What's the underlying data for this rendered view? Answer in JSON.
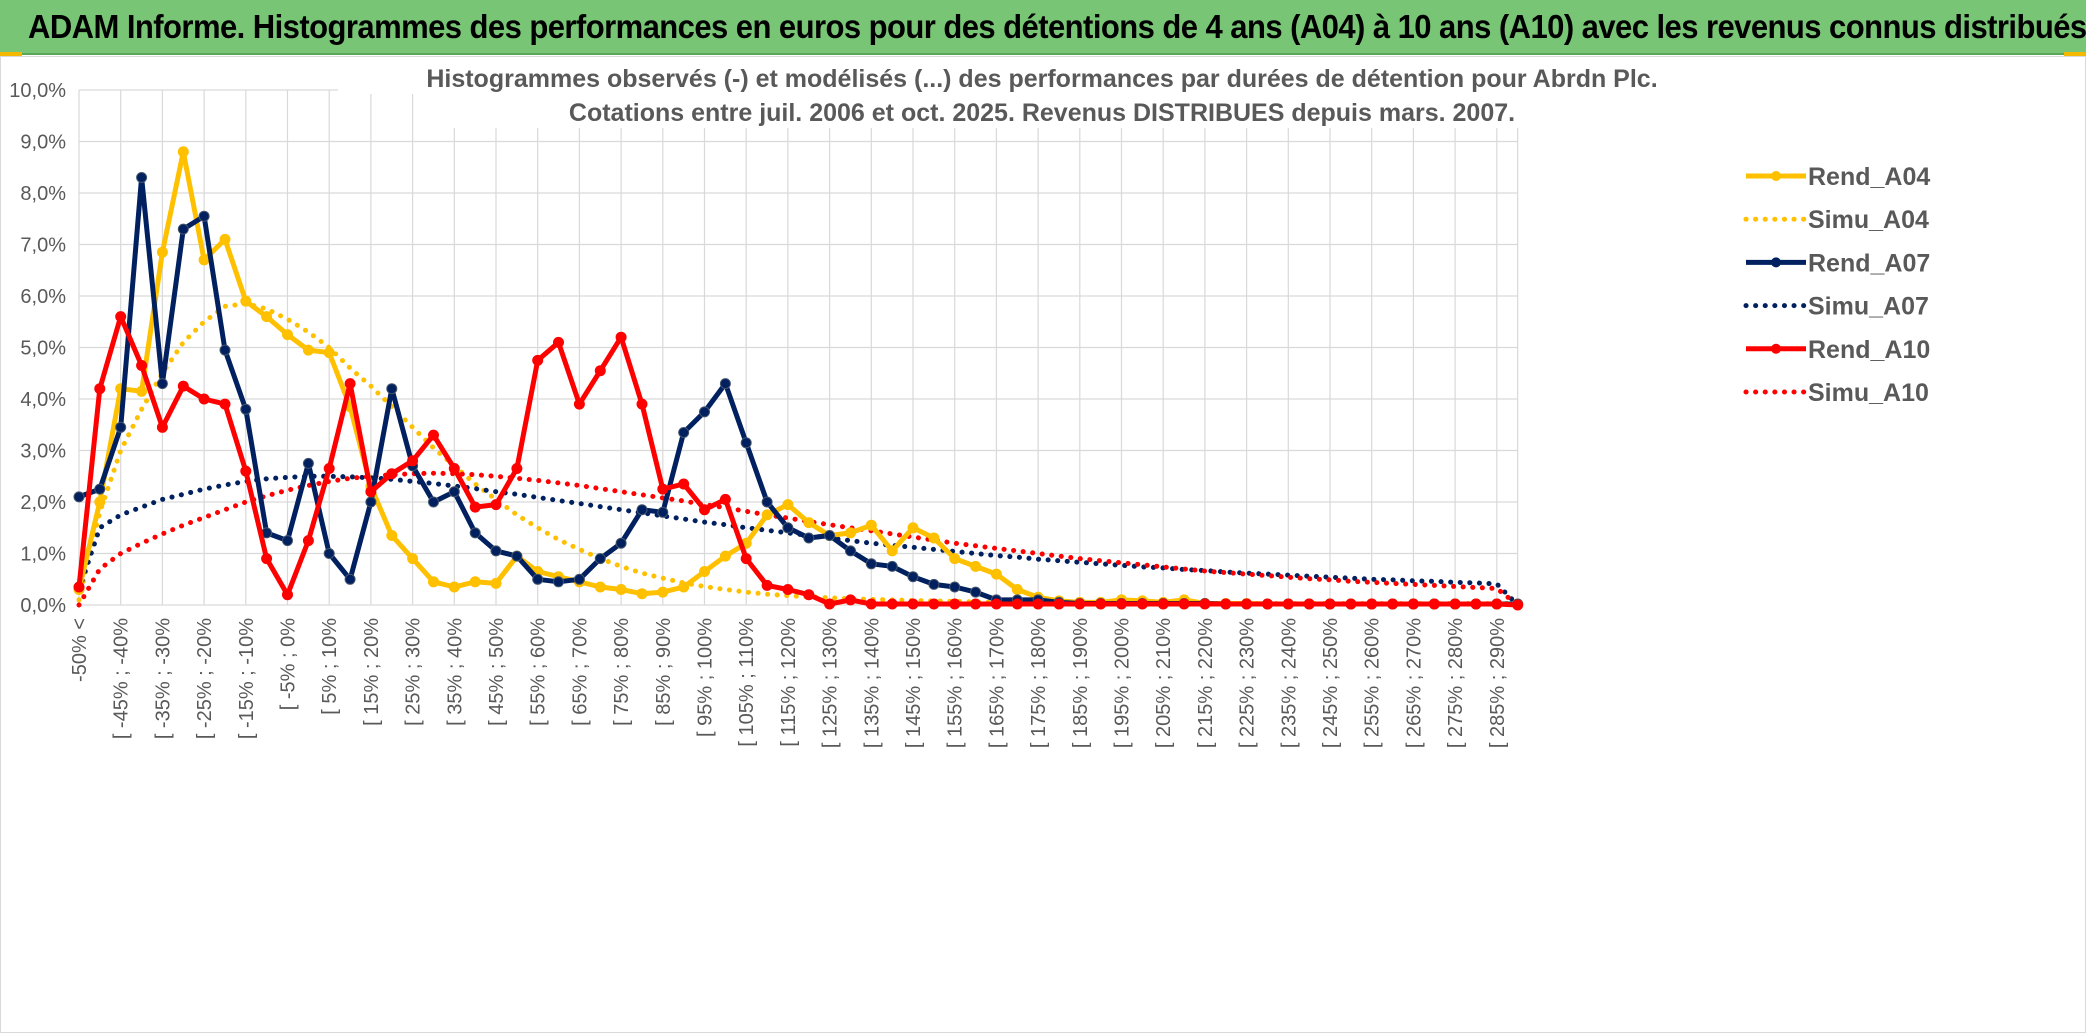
{
  "banner": {
    "title": "ADAM Informe. Histogrammes des performances en euros pour des détentions de 4 ans (A04) à 10 ans (A10) avec les revenus connus distribués"
  },
  "colors": {
    "A04": "#ffc000",
    "A07": "#002060",
    "A10": "#ff0000",
    "grid": "#d9d9d9",
    "banner": "#77c575"
  },
  "chart_data": {
    "type": "line",
    "title_line1": "Histogrammes observés (-) et modélisés (...) des performances par durées de détention pour Abrdn Plc.",
    "title_line2": "Cotations entre juil. 2006 et oct. 2025. Revenus DISTRIBUES depuis mars. 2007.",
    "ylim": [
      0,
      10
    ],
    "y_ticks": [
      "0,0%",
      "1,0%",
      "2,0%",
      "3,0%",
      "4,0%",
      "5,0%",
      "6,0%",
      "7,0%",
      "8,0%",
      "9,0%",
      "10,0%"
    ],
    "x_tick_labels": [
      "-50% <",
      "[ -45% ; -40%",
      "[ -35% ; -30%",
      "[ -25% ; -20%",
      "[ -15% ; -10%",
      "[ -5% ; 0%",
      "[ 5% ; 10%",
      "[ 15% ; 20%",
      "[ 25% ; 30%",
      "[ 35% ; 40%",
      "[ 45% ; 50%",
      "[ 55% ; 60%",
      "[ 65% ; 70%",
      "[ 75% ; 80%",
      "[ 85% ; 90%",
      "[ 95% ; 100%",
      "[ 105% ; 110%",
      "[ 115% ; 120%",
      "[ 125% ; 130%",
      "[ 135% ; 140%",
      "[ 145% ; 150%",
      "[ 155% ; 160%",
      "[ 165% ; 170%",
      "[ 175% ; 180%",
      "[ 185% ; 190%",
      "[ 195% ; 200%",
      "[ 205% ; 210%",
      "[ 215% ; 220%",
      "[ 225% ; 230%",
      "[ 235% ; 240%",
      "[ 245% ; 250%",
      "[ 255% ; 260%",
      "[ 265% ; 270%",
      "[ 275% ; 280%",
      "[ 285% ; 290%"
    ],
    "category_count": 70,
    "series": [
      {
        "name": "Rend_A04",
        "style": "solid",
        "color": "#ffc000",
        "values": [
          0.3,
          2.0,
          4.2,
          4.15,
          6.85,
          8.8,
          6.7,
          7.1,
          5.9,
          5.6,
          5.25,
          4.95,
          4.9,
          3.85,
          2.3,
          1.35,
          0.9,
          0.45,
          0.35,
          0.45,
          0.42,
          0.95,
          0.65,
          0.55,
          0.45,
          0.35,
          0.3,
          0.22,
          0.25,
          0.35,
          0.65,
          0.95,
          1.2,
          1.75,
          1.95,
          1.6,
          1.35,
          1.4,
          1.55,
          1.05,
          1.5,
          1.3,
          0.9,
          0.75,
          0.6,
          0.3,
          0.15,
          0.08,
          0.05,
          0.05,
          0.1,
          0.08,
          0.05,
          0.1,
          0.03,
          0.03,
          0.03,
          0.02,
          0.02,
          0.02,
          0.02,
          0.02,
          0.02,
          0.02,
          0.02,
          0.02,
          0.02,
          0.02,
          0.02,
          0.02
        ]
      },
      {
        "name": "Simu_A04",
        "style": "dotted",
        "color": "#ffc000",
        "values": [
          0.1,
          1.8,
          3.0,
          3.8,
          4.5,
          5.1,
          5.5,
          5.8,
          5.85,
          5.75,
          5.55,
          5.3,
          5.0,
          4.6,
          4.25,
          3.85,
          3.45,
          3.05,
          2.7,
          2.35,
          2.05,
          1.75,
          1.5,
          1.27,
          1.08,
          0.9,
          0.75,
          0.62,
          0.52,
          0.43,
          0.36,
          0.3,
          0.25,
          0.21,
          0.18,
          0.16,
          0.14,
          0.12,
          0.11,
          0.1,
          0.09,
          0.08,
          0.07,
          0.06,
          0.05,
          0.05,
          0.04,
          0.04,
          0.03,
          0.03,
          0.03,
          0.03,
          0.03,
          0.03,
          0.03,
          0.03,
          0.03,
          0.03,
          0.03,
          0.03,
          0.03,
          0.03,
          0.03,
          0.03,
          0.03,
          0.03,
          0.03,
          0.03,
          0.03,
          0.03
        ]
      },
      {
        "name": "Rend_A07",
        "style": "solid",
        "color": "#002060",
        "values": [
          2.1,
          2.25,
          3.45,
          8.3,
          4.3,
          7.3,
          7.55,
          4.95,
          3.8,
          1.4,
          1.25,
          2.75,
          1.0,
          0.5,
          2.0,
          4.2,
          2.7,
          2.0,
          2.2,
          1.4,
          1.05,
          0.95,
          0.5,
          0.45,
          0.5,
          0.9,
          1.2,
          1.85,
          1.8,
          3.35,
          3.75,
          4.3,
          3.15,
          2.0,
          1.5,
          1.3,
          1.35,
          1.05,
          0.8,
          0.75,
          0.55,
          0.4,
          0.35,
          0.25,
          0.1,
          0.1,
          0.1,
          0.05,
          0.03,
          0.03,
          0.03,
          0.03,
          0.03,
          0.03,
          0.03,
          0.02,
          0.02,
          0.02,
          0.02,
          0.02,
          0.02,
          0.02,
          0.02,
          0.02,
          0.02,
          0.02,
          0.02,
          0.02,
          0.02,
          0.02
        ]
      },
      {
        "name": "Simu_A07",
        "style": "dotted",
        "color": "#002060",
        "values": [
          0.3,
          1.5,
          1.75,
          1.9,
          2.05,
          2.15,
          2.25,
          2.33,
          2.4,
          2.45,
          2.48,
          2.5,
          2.5,
          2.49,
          2.47,
          2.44,
          2.4,
          2.36,
          2.31,
          2.26,
          2.2,
          2.15,
          2.09,
          2.03,
          1.97,
          1.91,
          1.85,
          1.79,
          1.73,
          1.67,
          1.61,
          1.56,
          1.5,
          1.45,
          1.4,
          1.35,
          1.3,
          1.25,
          1.2,
          1.16,
          1.12,
          1.08,
          1.04,
          1.0,
          0.96,
          0.93,
          0.89,
          0.86,
          0.83,
          0.8,
          0.77,
          0.74,
          0.72,
          0.69,
          0.67,
          0.64,
          0.62,
          0.6,
          0.58,
          0.56,
          0.54,
          0.52,
          0.5,
          0.49,
          0.47,
          0.46,
          0.44,
          0.43,
          0.41,
          0.0
        ]
      },
      {
        "name": "Rend_A10",
        "style": "solid",
        "color": "#ff0000",
        "values": [
          0.35,
          4.2,
          5.6,
          4.65,
          3.45,
          4.25,
          4.0,
          3.9,
          2.6,
          0.9,
          0.2,
          1.25,
          2.65,
          4.3,
          2.2,
          2.55,
          2.8,
          3.3,
          2.65,
          1.9,
          1.95,
          2.65,
          4.75,
          5.1,
          3.9,
          4.55,
          5.2,
          3.9,
          2.25,
          2.35,
          1.85,
          2.05,
          0.9,
          0.38,
          0.3,
          0.2,
          0.02,
          0.1,
          0.02,
          0.02,
          0.02,
          0.02,
          0.02,
          0.02,
          0.02,
          0.02,
          0.02,
          0.02,
          0.02,
          0.02,
          0.02,
          0.02,
          0.02,
          0.02,
          0.02,
          0.02,
          0.02,
          0.02,
          0.02,
          0.02,
          0.02,
          0.02,
          0.02,
          0.02,
          0.02,
          0.02,
          0.02,
          0.02,
          0.02,
          0.0
        ]
      },
      {
        "name": "Simu_A10",
        "style": "dotted",
        "color": "#ff0000",
        "values": [
          0.0,
          0.7,
          1.0,
          1.2,
          1.38,
          1.55,
          1.7,
          1.85,
          2.0,
          2.12,
          2.23,
          2.32,
          2.4,
          2.46,
          2.5,
          2.53,
          2.55,
          2.56,
          2.55,
          2.53,
          2.5,
          2.46,
          2.42,
          2.37,
          2.32,
          2.26,
          2.2,
          2.14,
          2.08,
          2.02,
          1.95,
          1.89,
          1.82,
          1.75,
          1.69,
          1.62,
          1.56,
          1.5,
          1.44,
          1.38,
          1.32,
          1.26,
          1.2,
          1.15,
          1.1,
          1.05,
          1.0,
          0.95,
          0.9,
          0.86,
          0.82,
          0.78,
          0.74,
          0.7,
          0.66,
          0.63,
          0.6,
          0.57,
          0.54,
          0.51,
          0.49,
          0.46,
          0.44,
          0.42,
          0.4,
          0.38,
          0.36,
          0.34,
          0.32,
          0.0
        ]
      }
    ],
    "legend": {
      "position": "right",
      "entries": [
        "Rend_A04",
        "Simu_A04",
        "Rend_A07",
        "Simu_A07",
        "Rend_A10",
        "Simu_A10"
      ]
    }
  }
}
